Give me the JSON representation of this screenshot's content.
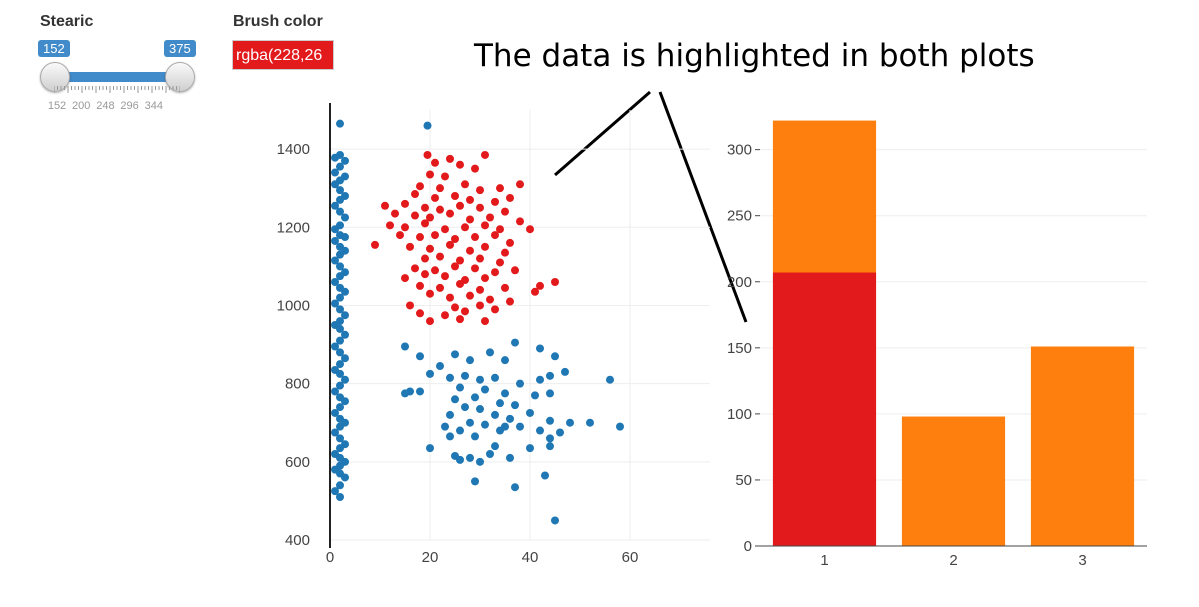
{
  "controls": {
    "stearic": {
      "label": "Stearic",
      "min_value": "152",
      "max_value": "375",
      "grid_labels": [
        "152",
        "200",
        "248",
        "296",
        "344"
      ]
    },
    "brush_color": {
      "label": "Brush color",
      "value": "rgba(228,26",
      "swatch_color": "#e31a1c"
    }
  },
  "annotation": "The data is highlighted in both plots",
  "chart_data": [
    {
      "type": "scatter",
      "xlim": [
        0,
        60
      ],
      "ylim": [
        400,
        1500
      ],
      "xticks": [
        "0",
        "20",
        "40",
        "60"
      ],
      "yticks": [
        "400",
        "600",
        "800",
        "1000",
        "1200",
        "1400"
      ],
      "grid": true,
      "colors": {
        "selected": "#e31a1c",
        "unselected": "#1f77b4"
      },
      "series": [
        {
          "color_key": "unselected",
          "points": [
            [
              2,
              1465
            ],
            [
              2,
              1385
            ],
            [
              1,
              1378
            ],
            [
              3,
              1370
            ],
            [
              2,
              1355
            ],
            [
              1,
              1340
            ],
            [
              3,
              1330
            ],
            [
              2,
              1320
            ],
            [
              1,
              1310
            ],
            [
              2,
              1295
            ],
            [
              3,
              1280
            ],
            [
              2,
              1270
            ],
            [
              1,
              1255
            ],
            [
              2,
              1240
            ],
            [
              3,
              1225
            ],
            [
              2,
              1205
            ],
            [
              1,
              1195
            ],
            [
              2,
              1180
            ],
            [
              3,
              1175
            ],
            [
              1,
              1165
            ],
            [
              2,
              1150
            ],
            [
              3,
              1140
            ],
            [
              2,
              1130
            ],
            [
              1,
              1115
            ],
            [
              2,
              1100
            ],
            [
              3,
              1085
            ],
            [
              2,
              1075
            ],
            [
              1,
              1060
            ],
            [
              2,
              1045
            ],
            [
              3,
              1035
            ],
            [
              2,
              1020
            ],
            [
              1,
              1005
            ],
            [
              2,
              990
            ],
            [
              3,
              975
            ],
            [
              2,
              960
            ],
            [
              1,
              950
            ],
            [
              2,
              940
            ],
            [
              3,
              925
            ],
            [
              2,
              910
            ],
            [
              1,
              895
            ],
            [
              2,
              880
            ],
            [
              3,
              865
            ],
            [
              2,
              850
            ],
            [
              1,
              835
            ],
            [
              2,
              825
            ],
            [
              3,
              810
            ],
            [
              2,
              795
            ],
            [
              1,
              780
            ],
            [
              2,
              765
            ],
            [
              3,
              755
            ],
            [
              2,
              740
            ],
            [
              1,
              725
            ],
            [
              2,
              710
            ],
            [
              3,
              700
            ],
            [
              2,
              690
            ],
            [
              1,
              675
            ],
            [
              2,
              660
            ],
            [
              3,
              645
            ],
            [
              2,
              635
            ],
            [
              1,
              620
            ],
            [
              2,
              610
            ],
            [
              3,
              600
            ],
            [
              2,
              590
            ],
            [
              1,
              580
            ],
            [
              2,
              570
            ],
            [
              3,
              560
            ],
            [
              2,
              540
            ],
            [
              1,
              525
            ],
            [
              2,
              510
            ],
            [
              19.5,
              1460
            ],
            [
              15,
              895
            ],
            [
              18,
              870
            ],
            [
              25,
              875
            ],
            [
              32,
              880
            ],
            [
              37,
              905
            ],
            [
              42,
              890
            ],
            [
              45,
              870
            ],
            [
              35,
              860
            ],
            [
              28,
              860
            ],
            [
              22,
              845
            ],
            [
              20,
              825
            ],
            [
              24,
              815
            ],
            [
              27,
              820
            ],
            [
              30,
              810
            ],
            [
              33,
              815
            ],
            [
              38,
              800
            ],
            [
              42,
              810
            ],
            [
              44,
              820
            ],
            [
              47,
              830
            ],
            [
              16,
              780
            ],
            [
              15,
              775
            ],
            [
              18,
              780
            ],
            [
              26,
              790
            ],
            [
              31,
              785
            ],
            [
              35,
              775
            ],
            [
              41,
              770
            ],
            [
              44,
              775
            ],
            [
              25,
              760
            ],
            [
              29,
              765
            ],
            [
              34,
              750
            ],
            [
              37,
              745
            ],
            [
              27,
              740
            ],
            [
              30,
              735
            ],
            [
              24,
              720
            ],
            [
              33,
              720
            ],
            [
              36,
              710
            ],
            [
              40,
              725
            ],
            [
              44,
              705
            ],
            [
              28,
              700
            ],
            [
              31,
              695
            ],
            [
              35,
              690
            ],
            [
              23,
              690
            ],
            [
              26,
              680
            ],
            [
              38,
              690
            ],
            [
              42,
              680
            ],
            [
              24,
              665
            ],
            [
              29,
              665
            ],
            [
              34,
              680
            ],
            [
              48,
              700
            ],
            [
              52,
              700
            ],
            [
              56,
              810
            ],
            [
              58,
              690
            ],
            [
              25,
              615
            ],
            [
              26,
              605
            ],
            [
              28,
              610
            ],
            [
              32,
              620
            ],
            [
              36,
              610
            ],
            [
              20,
              635
            ],
            [
              40,
              635
            ],
            [
              44,
              660
            ],
            [
              46,
              675
            ],
            [
              44,
              640
            ],
            [
              29,
              550
            ],
            [
              37,
              535
            ],
            [
              43,
              565
            ],
            [
              45,
              450
            ],
            [
              30,
              600
            ],
            [
              33,
              640
            ]
          ]
        },
        {
          "color_key": "selected",
          "points": [
            [
              19.5,
              1385
            ],
            [
              24,
              1375
            ],
            [
              31,
              1385
            ],
            [
              21,
              1365
            ],
            [
              26,
              1360
            ],
            [
              29,
              1350
            ],
            [
              38,
              1310
            ],
            [
              20,
              1335
            ],
            [
              23,
              1330
            ],
            [
              18,
              1305
            ],
            [
              22,
              1300
            ],
            [
              27,
              1310
            ],
            [
              30,
              1295
            ],
            [
              34,
              1300
            ],
            [
              17,
              1285
            ],
            [
              21,
              1275
            ],
            [
              25,
              1280
            ],
            [
              28,
              1270
            ],
            [
              33,
              1265
            ],
            [
              36,
              1275
            ],
            [
              11,
              1255
            ],
            [
              15,
              1260
            ],
            [
              19,
              1250
            ],
            [
              22,
              1245
            ],
            [
              26,
              1255
            ],
            [
              30,
              1250
            ],
            [
              35,
              1240
            ],
            [
              13,
              1235
            ],
            [
              17,
              1230
            ],
            [
              20,
              1225
            ],
            [
              24,
              1235
            ],
            [
              28,
              1220
            ],
            [
              32,
              1225
            ],
            [
              38,
              1215
            ],
            [
              12,
              1205
            ],
            [
              15,
              1200
            ],
            [
              19,
              1210
            ],
            [
              23,
              1195
            ],
            [
              27,
              1200
            ],
            [
              31,
              1205
            ],
            [
              34,
              1195
            ],
            [
              40,
              1195
            ],
            [
              9,
              1155
            ],
            [
              14,
              1180
            ],
            [
              18,
              1175
            ],
            [
              21,
              1180
            ],
            [
              25,
              1170
            ],
            [
              29,
              1175
            ],
            [
              33,
              1180
            ],
            [
              36,
              1160
            ],
            [
              16,
              1150
            ],
            [
              20,
              1145
            ],
            [
              24,
              1155
            ],
            [
              28,
              1140
            ],
            [
              31,
              1150
            ],
            [
              35,
              1135
            ],
            [
              19,
              1120
            ],
            [
              22,
              1125
            ],
            [
              26,
              1115
            ],
            [
              30,
              1120
            ],
            [
              34,
              1110
            ],
            [
              17,
              1095
            ],
            [
              21,
              1090
            ],
            [
              25,
              1100
            ],
            [
              29,
              1095
            ],
            [
              33,
              1085
            ],
            [
              37,
              1090
            ],
            [
              15,
              1070
            ],
            [
              19,
              1080
            ],
            [
              23,
              1075
            ],
            [
              27,
              1065
            ],
            [
              31,
              1070
            ],
            [
              18,
              1050
            ],
            [
              22,
              1045
            ],
            [
              26,
              1055
            ],
            [
              30,
              1040
            ],
            [
              35,
              1045
            ],
            [
              42,
              1050
            ],
            [
              45,
              1060
            ],
            [
              20,
              1030
            ],
            [
              24,
              1020
            ],
            [
              28,
              1025
            ],
            [
              32,
              1015
            ],
            [
              36,
              1010
            ],
            [
              41,
              1035
            ],
            [
              16,
              1000
            ],
            [
              25,
              995
            ],
            [
              30,
              1000
            ],
            [
              18,
              980
            ],
            [
              23,
              975
            ],
            [
              27,
              985
            ],
            [
              33,
              990
            ],
            [
              20,
              960
            ],
            [
              26,
              965
            ],
            [
              31,
              960
            ]
          ]
        }
      ]
    },
    {
      "type": "bar",
      "categories": [
        "1",
        "2",
        "3"
      ],
      "ylim": [
        0,
        330
      ],
      "yticks": [
        "0",
        "50",
        "100",
        "150",
        "200",
        "250",
        "300"
      ],
      "grid": true,
      "series": [
        {
          "color": "#e31a1c",
          "values": [
            207,
            0,
            0
          ]
        },
        {
          "color": "#ff7f0e",
          "values": [
            115,
            98,
            151
          ]
        }
      ]
    }
  ]
}
